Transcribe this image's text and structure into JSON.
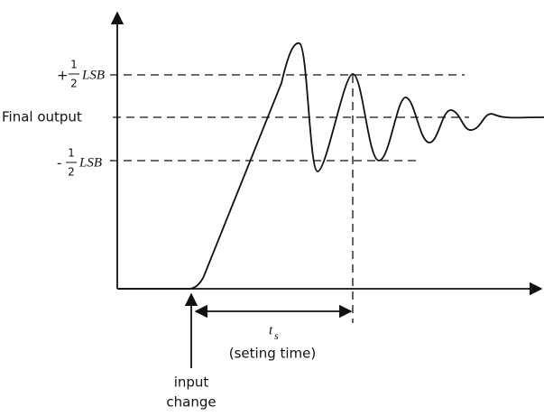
{
  "upper_band": {
    "sign": "+",
    "numerator": "1",
    "denominator": "2",
    "unit": "LSB"
  },
  "final_output": "Final output",
  "lower_band": {
    "sign": "-",
    "numerator": "1",
    "denominator": "2",
    "unit": "LSB"
  },
  "settling": {
    "symbol": "t",
    "subscript": "s",
    "caption": "(seting time)"
  },
  "input": {
    "line1": "input",
    "line2": "change"
  }
}
